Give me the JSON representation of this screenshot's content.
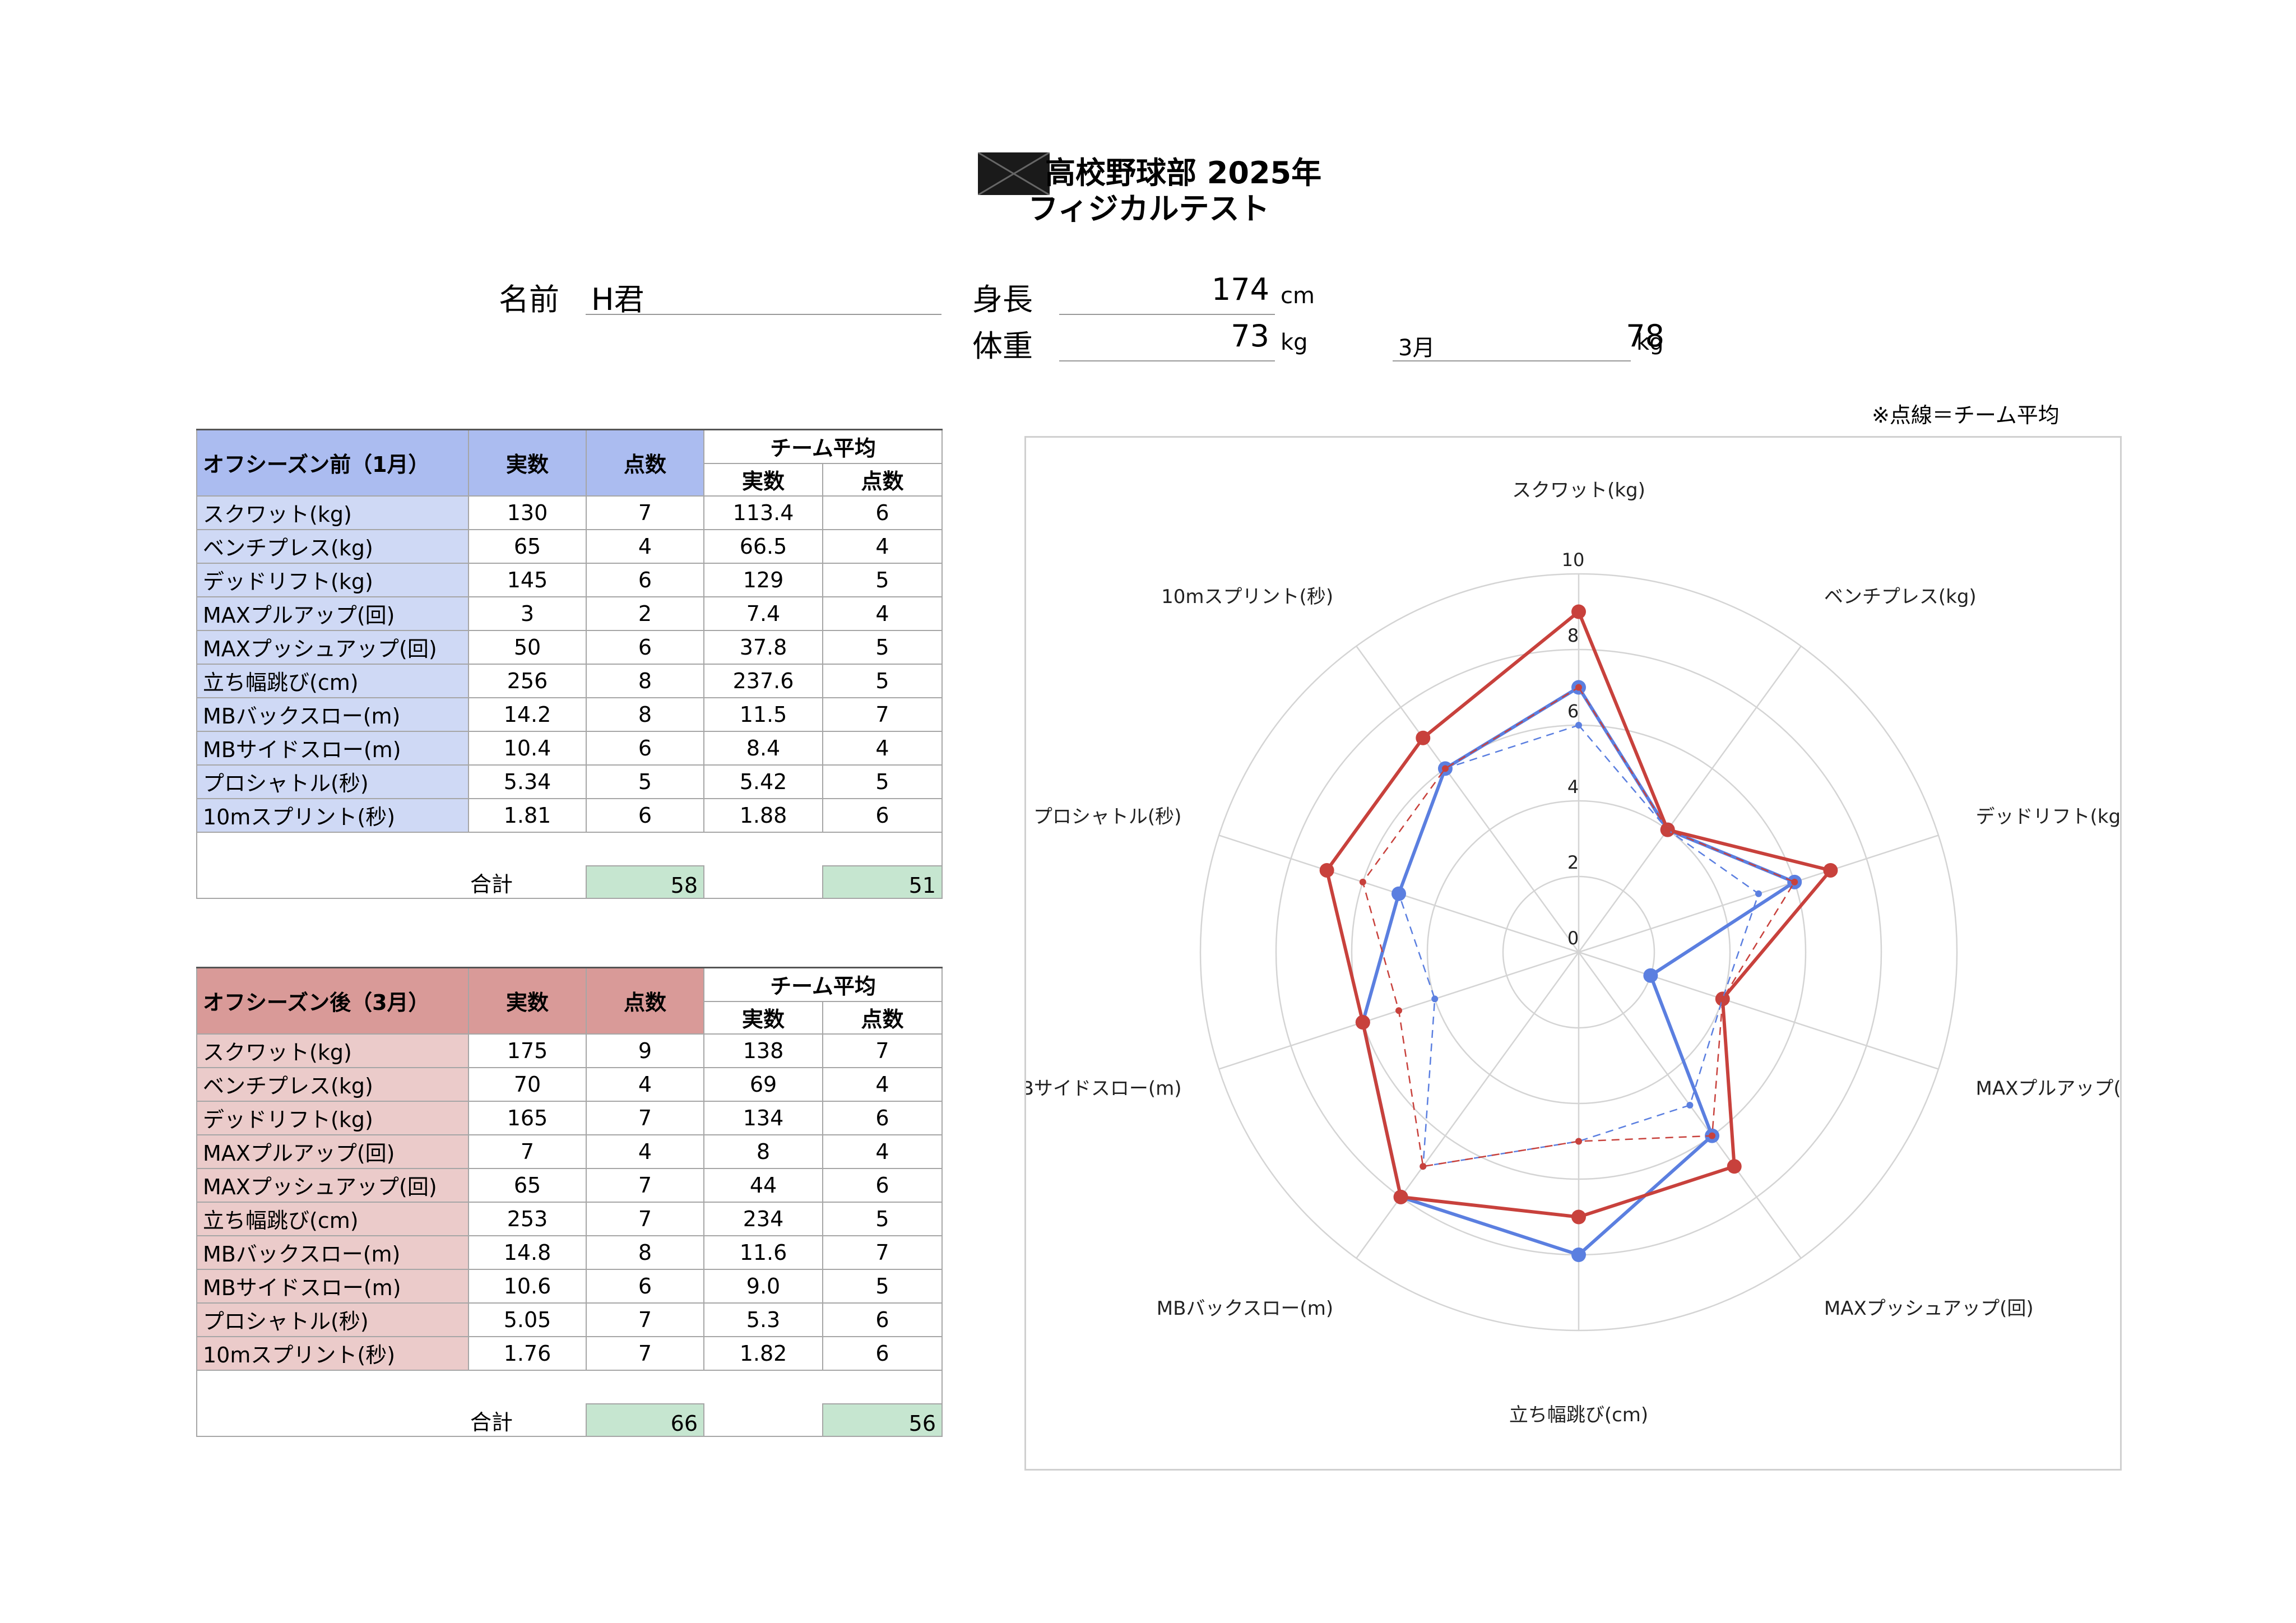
{
  "header": {
    "title_line1": "高校野球部 2025年",
    "title_line2": "フィジカルテスト"
  },
  "profile": {
    "name_label": "名前",
    "name_value": "H君",
    "height_label": "身長",
    "height_value": "174",
    "height_unit": "cm",
    "weight_label": "体重",
    "weight_value": "73",
    "weight_unit": "kg",
    "march_label": "3月",
    "march_weight_value": "78",
    "march_weight_unit": "kg"
  },
  "note": "※点線＝チーム平均",
  "table_before": {
    "title": "オフシーズン前（1月）",
    "col_actual": "実数",
    "col_score": "点数",
    "team_avg": "チーム平均",
    "sub_actual": "実数",
    "sub_score": "点数",
    "rows": [
      {
        "item": "スクワット(kg)",
        "actual": "130",
        "score": "7",
        "avg_actual": "113.4",
        "avg_score": "6"
      },
      {
        "item": "ベンチプレス(kg)",
        "actual": "65",
        "score": "4",
        "avg_actual": "66.5",
        "avg_score": "4"
      },
      {
        "item": "デッドリフト(kg)",
        "actual": "145",
        "score": "6",
        "avg_actual": "129",
        "avg_score": "5"
      },
      {
        "item": "MAXプルアップ(回)",
        "actual": "3",
        "score": "2",
        "avg_actual": "7.4",
        "avg_score": "4"
      },
      {
        "item": "MAXプッシュアップ(回)",
        "actual": "50",
        "score": "6",
        "avg_actual": "37.8",
        "avg_score": "5"
      },
      {
        "item": "立ち幅跳び(cm)",
        "actual": "256",
        "score": "8",
        "avg_actual": "237.6",
        "avg_score": "5"
      },
      {
        "item": "MBバックスロー(m)",
        "actual": "14.2",
        "score": "8",
        "avg_actual": "11.5",
        "avg_score": "7"
      },
      {
        "item": "MBサイドスロー(m)",
        "actual": "10.4",
        "score": "6",
        "avg_actual": "8.4",
        "avg_score": "4"
      },
      {
        "item": "プロシャトル(秒)",
        "actual": "5.34",
        "score": "5",
        "avg_actual": "5.42",
        "avg_score": "5"
      },
      {
        "item": "10mスプリント(秒)",
        "actual": "1.81",
        "score": "6",
        "avg_actual": "1.88",
        "avg_score": "6"
      }
    ],
    "total_label": "合計",
    "total": "58",
    "avg_total": "51"
  },
  "table_after": {
    "title": "オフシーズン後（3月）",
    "col_actual": "実数",
    "col_score": "点数",
    "team_avg": "チーム平均",
    "sub_actual": "実数",
    "sub_score": "点数",
    "rows": [
      {
        "item": "スクワット(kg)",
        "actual": "175",
        "score": "9",
        "avg_actual": "138",
        "avg_score": "7"
      },
      {
        "item": "ベンチプレス(kg)",
        "actual": "70",
        "score": "4",
        "avg_actual": "69",
        "avg_score": "4"
      },
      {
        "item": "デッドリフト(kg)",
        "actual": "165",
        "score": "7",
        "avg_actual": "134",
        "avg_score": "6"
      },
      {
        "item": "MAXプルアップ(回)",
        "actual": "7",
        "score": "4",
        "avg_actual": "8",
        "avg_score": "4"
      },
      {
        "item": "MAXプッシュアップ(回)",
        "actual": "65",
        "score": "7",
        "avg_actual": "44",
        "avg_score": "6"
      },
      {
        "item": "立ち幅跳び(cm)",
        "actual": "253",
        "score": "7",
        "avg_actual": "234",
        "avg_score": "5"
      },
      {
        "item": "MBバックスロー(m)",
        "actual": "14.8",
        "score": "8",
        "avg_actual": "11.6",
        "avg_score": "7"
      },
      {
        "item": "MBサイドスロー(m)",
        "actual": "10.6",
        "score": "6",
        "avg_actual": "9.0",
        "avg_score": "5"
      },
      {
        "item": "プロシャトル(秒)",
        "actual": "5.05",
        "score": "7",
        "avg_actual": "5.3",
        "avg_score": "6"
      },
      {
        "item": "10mスプリント(秒)",
        "actual": "1.76",
        "score": "7",
        "avg_actual": "1.82",
        "avg_score": "6"
      }
    ],
    "total_label": "合計",
    "total": "66",
    "avg_total": "56"
  },
  "chart_data": {
    "type": "radar",
    "categories": [
      "スクワット(kg)",
      "ベンチプレス(kg)",
      "デッドリフト(kg)",
      "MAXプルアップ(回)",
      "MAXプッシュアップ(回)",
      "立ち幅跳び(cm)",
      "MBバックスロー(m)",
      "MBサイドスロー(m)",
      "プロシャトル(秒)",
      "10mスプリント(秒)"
    ],
    "rlim": [
      0,
      10
    ],
    "ticks": [
      "0",
      "2",
      "4",
      "6",
      "8",
      "10"
    ],
    "grid": true,
    "series": [
      {
        "values": [
          7,
          4,
          6,
          2,
          6,
          8,
          8,
          6,
          5,
          6
        ],
        "color": "#5b7fe0",
        "style": "solid"
      },
      {
        "values": [
          9,
          4,
          7,
          4,
          7,
          7,
          8,
          6,
          7,
          7
        ],
        "color": "#c8413c",
        "style": "solid"
      },
      {
        "values": [
          6,
          4,
          5,
          4,
          5,
          5,
          7,
          4,
          5,
          6
        ],
        "color": "#5b7fe0",
        "style": "dashed"
      },
      {
        "values": [
          7,
          4,
          6,
          4,
          6,
          5,
          7,
          5,
          6,
          6
        ],
        "color": "#c8413c",
        "style": "dashed"
      }
    ]
  }
}
